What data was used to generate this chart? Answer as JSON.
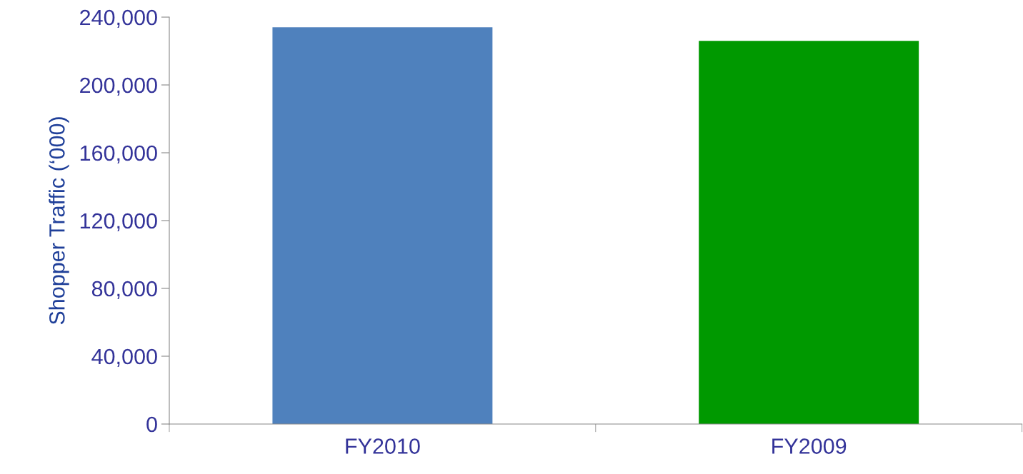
{
  "chart_data": {
    "type": "bar",
    "ylabel": "Shopper Traffic (‘000)",
    "categories": [
      "FY2010",
      "FY2009"
    ],
    "values": [
      234000,
      226000
    ],
    "colors": [
      "#4f81bd",
      "#009900"
    ],
    "ylim": [
      0,
      240000
    ],
    "yticks": [
      {
        "value": 0,
        "label": "0"
      },
      {
        "value": 40000,
        "label": "40,000"
      },
      {
        "value": 80000,
        "label": "80,000"
      },
      {
        "value": 120000,
        "label": "120,000"
      },
      {
        "value": 160000,
        "label": "160,000"
      },
      {
        "value": 200000,
        "label": "200,000"
      },
      {
        "value": 240000,
        "label": "240,000"
      }
    ],
    "grid": false,
    "legend": false
  }
}
